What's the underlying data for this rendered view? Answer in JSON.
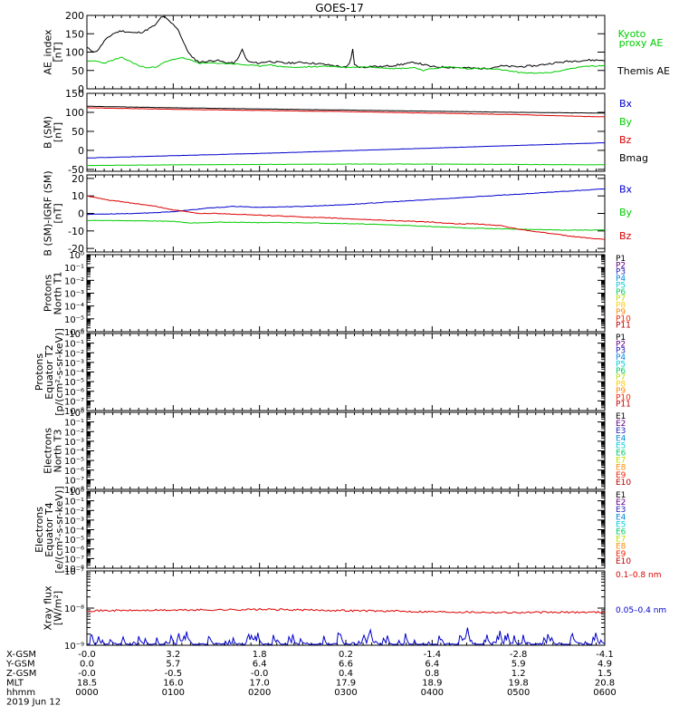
{
  "title": "GOES-17",
  "chart_data": [
    {
      "type": "line",
      "panel": "ae",
      "ylabel": [
        "AE_index",
        "[nT]"
      ],
      "ylim": [
        0,
        200
      ],
      "yticks": [
        {
          "v": 200,
          "label": "200"
        },
        {
          "v": 150,
          "label": "150"
        },
        {
          "v": 100,
          "label": "100"
        },
        {
          "v": 50,
          "label": "50"
        },
        {
          "v": 0,
          "label": "0"
        }
      ],
      "legend_labels": [
        {
          "text": "Kyoto",
          "color": "#00cc00"
        },
        {
          "text": "proxy AE",
          "color": "#00cc00"
        },
        {
          "text": "Themis AE",
          "color": "#000000"
        }
      ],
      "series": [
        {
          "name": "Themis AE",
          "color": "#000000",
          "noise": 2.5,
          "seed": 11,
          "x": [
            0,
            5,
            10,
            15,
            20,
            25,
            30,
            40,
            55,
            65,
            75,
            80,
            85,
            87,
            90,
            95,
            100,
            105,
            115,
            122,
            130,
            140,
            150,
            160,
            170,
            175,
            178,
            180,
            182,
            185,
            190,
            200,
            210,
            230,
            250,
            270,
            290,
            300,
            305,
            308,
            310,
            315,
            320,
            330,
            340,
            360,
            380,
            400,
            430,
            460,
            480,
            500,
            520,
            540,
            560,
            580,
            600
          ],
          "y": [
            112,
            105,
            100,
            112,
            130,
            140,
            150,
            158,
            152,
            155,
            168,
            175,
            192,
            198,
            195,
            185,
            175,
            165,
            110,
            85,
            73,
            75,
            78,
            72,
            70,
            80,
            100,
            106,
            95,
            78,
            72,
            70,
            75,
            70,
            72,
            68,
            62,
            58,
            70,
            110,
            65,
            60,
            58,
            62,
            60,
            65,
            72,
            60,
            58,
            55,
            62,
            60,
            63,
            70,
            75,
            78,
            78
          ]
        },
        {
          "name": "Kyoto proxy AE",
          "color": "#00cc00",
          "noise": 1.5,
          "seed": 23,
          "x": [
            0,
            10,
            20,
            30,
            40,
            50,
            60,
            70,
            80,
            90,
            100,
            110,
            120,
            130,
            150,
            170,
            190,
            200,
            210,
            220,
            240,
            260,
            280,
            300,
            320,
            340,
            360,
            380,
            390,
            400,
            420,
            440,
            460,
            480,
            500,
            520,
            540,
            560,
            580,
            600
          ],
          "y": [
            74,
            76,
            70,
            78,
            85,
            75,
            63,
            57,
            60,
            72,
            80,
            85,
            78,
            70,
            70,
            68,
            64,
            62,
            66,
            62,
            58,
            60,
            62,
            58,
            60,
            58,
            55,
            58,
            50,
            55,
            60,
            55,
            55,
            52,
            45,
            42,
            45,
            55,
            62,
            62
          ]
        }
      ]
    },
    {
      "type": "line",
      "panel": "b_sm",
      "ylabel": [
        "B (SM)",
        "[nT]"
      ],
      "ylim": [
        -55,
        150
      ],
      "yticks": [
        {
          "v": 150,
          "label": "150"
        },
        {
          "v": 100,
          "label": "100"
        },
        {
          "v": 50,
          "label": "50"
        },
        {
          "v": 0,
          "label": "0"
        },
        {
          "v": -50,
          "label": "-50"
        }
      ],
      "legend_labels": [
        {
          "text": "Bx",
          "color": "#0000cc"
        },
        {
          "text": "By",
          "color": "#00cc00"
        },
        {
          "text": "Bz",
          "color": "#dd0000"
        },
        {
          "text": "Bmag",
          "color": "#000000"
        }
      ],
      "series": [
        {
          "name": "Bx",
          "color": "#0000cc",
          "noise": 0.3,
          "seed": 31,
          "x": [
            0,
            100,
            200,
            300,
            400,
            500,
            600
          ],
          "y": [
            -20,
            -14,
            -8,
            -1,
            6,
            13,
            20
          ]
        },
        {
          "name": "By",
          "color": "#00cc00",
          "noise": 0.4,
          "seed": 37,
          "x": [
            0,
            100,
            200,
            300,
            400,
            500,
            600
          ],
          "y": [
            -40,
            -38,
            -37,
            -36,
            -36,
            -37,
            -38
          ]
        },
        {
          "name": "Bz",
          "color": "#dd0000",
          "noise": 0.5,
          "seed": 41,
          "x": [
            0,
            100,
            200,
            300,
            400,
            500,
            600
          ],
          "y": [
            112,
            108,
            105,
            102,
            98,
            94,
            88
          ]
        },
        {
          "name": "Bmag",
          "color": "#000000",
          "noise": 0.3,
          "seed": 43,
          "x": [
            0,
            100,
            200,
            300,
            400,
            500,
            600
          ],
          "y": [
            116,
            112,
            109,
            106,
            103,
            100,
            98
          ]
        }
      ]
    },
    {
      "type": "line",
      "panel": "b_sm_igrf",
      "ylabel": [
        "B (SM)-IGRF (SM)",
        "[nT]"
      ],
      "ylim": [
        -22,
        22
      ],
      "yticks": [
        {
          "v": 20,
          "label": "20"
        },
        {
          "v": 10,
          "label": "10"
        },
        {
          "v": 0,
          "label": "0"
        },
        {
          "v": -10,
          "label": "-10"
        },
        {
          "v": -20,
          "label": "-20"
        }
      ],
      "legend_labels": [
        {
          "text": "Bx",
          "color": "#0000cc"
        },
        {
          "text": "By",
          "color": "#00cc00"
        },
        {
          "text": "Bz",
          "color": "#dd0000"
        }
      ],
      "series": [
        {
          "name": "Bx",
          "color": "#0000cc",
          "noise": 0.15,
          "seed": 53,
          "x": [
            0,
            60,
            100,
            140,
            170,
            200,
            250,
            300,
            350,
            400,
            450,
            500,
            550,
            600
          ],
          "y": [
            -0.5,
            0,
            1,
            3,
            4,
            3.5,
            4,
            5,
            6.5,
            8,
            9.5,
            11,
            12.5,
            14
          ]
        },
        {
          "name": "By",
          "color": "#00cc00",
          "noise": 0.15,
          "seed": 59,
          "x": [
            0,
            60,
            100,
            120,
            150,
            200,
            250,
            300,
            350,
            400,
            450,
            500,
            550,
            600
          ],
          "y": [
            -4,
            -4.2,
            -4.5,
            -5.5,
            -5,
            -5.2,
            -5.3,
            -5.8,
            -6.5,
            -7.5,
            -8.5,
            -9,
            -9.5,
            -9.5
          ]
        },
        {
          "name": "Bz",
          "color": "#dd0000",
          "noise": 0.2,
          "seed": 61,
          "x": [
            0,
            20,
            50,
            80,
            100,
            130,
            150,
            200,
            250,
            300,
            350,
            400,
            430,
            450,
            480,
            500,
            530,
            560,
            600
          ],
          "y": [
            10,
            8,
            6,
            4,
            2,
            0,
            0,
            -1,
            -2,
            -3,
            -4,
            -5,
            -6,
            -6,
            -7,
            -9,
            -11,
            -13,
            -15
          ]
        }
      ]
    },
    {
      "type": "line",
      "panel": "protons_t1",
      "ylabel": [
        "Protons",
        "North T1"
      ],
      "log": true,
      "ylim": [
        1e-06,
        1
      ],
      "ytick_labels": [
        "10⁰",
        "10⁻¹",
        "10⁻²",
        "10⁻³",
        "10⁻⁴",
        "10⁻⁵",
        "10⁻⁶"
      ],
      "legend_labels": [
        {
          "text": "P1",
          "color": "#000000"
        },
        {
          "text": "P2",
          "color": "#660088"
        },
        {
          "text": "P3",
          "color": "#2222bb"
        },
        {
          "text": "P4",
          "color": "#0088dd"
        },
        {
          "text": "P5",
          "color": "#00ccdd"
        },
        {
          "text": "P6",
          "color": "#00cc66"
        },
        {
          "text": "P7",
          "color": "#bbdd00"
        },
        {
          "text": "P8",
          "color": "#ffcc00"
        },
        {
          "text": "P9",
          "color": "#ff8800"
        },
        {
          "text": "P10",
          "color": "#ee2200"
        },
        {
          "text": "P11",
          "color": "#bb0000"
        }
      ],
      "series": []
    },
    {
      "type": "line",
      "panel": "protons_t2",
      "ylabel": [
        "Protons",
        "Equator T2",
        "[p/(cm²-s-sr-keV)]"
      ],
      "log": true,
      "ylim": [
        1e-08,
        1
      ],
      "ytick_labels": [
        "10⁰",
        "10⁻¹",
        "10⁻²",
        "10⁻³",
        "10⁻⁴",
        "10⁻⁵",
        "10⁻⁶",
        "10⁻⁷",
        "10⁻⁸"
      ],
      "legend_labels": [
        {
          "text": "P1",
          "color": "#000000"
        },
        {
          "text": "P2",
          "color": "#660088"
        },
        {
          "text": "P3",
          "color": "#2222bb"
        },
        {
          "text": "P4",
          "color": "#0088dd"
        },
        {
          "text": "P5",
          "color": "#00ccdd"
        },
        {
          "text": "P6",
          "color": "#00cc66"
        },
        {
          "text": "P7",
          "color": "#bbdd00"
        },
        {
          "text": "P8",
          "color": "#ffcc00"
        },
        {
          "text": "P9",
          "color": "#ff8800"
        },
        {
          "text": "P10",
          "color": "#ee2200"
        },
        {
          "text": "P11",
          "color": "#bb0000"
        }
      ],
      "series": []
    },
    {
      "type": "line",
      "panel": "electrons_t3",
      "ylabel": [
        "Electrons",
        "North T3"
      ],
      "log": true,
      "ylim": [
        1e-08,
        1
      ],
      "ytick_labels": [
        "10⁰",
        "10⁻¹",
        "10⁻²",
        "10⁻³",
        "10⁻⁴",
        "10⁻⁵",
        "10⁻⁶",
        "10⁻⁷",
        "10⁻⁸"
      ],
      "legend_labels": [
        {
          "text": "E1",
          "color": "#000000"
        },
        {
          "text": "E2",
          "color": "#660088"
        },
        {
          "text": "E3",
          "color": "#2222bb"
        },
        {
          "text": "E4",
          "color": "#0088dd"
        },
        {
          "text": "E5",
          "color": "#00ccdd"
        },
        {
          "text": "E6",
          "color": "#00cc66"
        },
        {
          "text": "E7",
          "color": "#bbdd00"
        },
        {
          "text": "E8",
          "color": "#ff8800"
        },
        {
          "text": "E9",
          "color": "#ee2200"
        },
        {
          "text": "E10",
          "color": "#bb0000"
        }
      ],
      "series": []
    },
    {
      "type": "line",
      "panel": "electrons_t4",
      "ylabel": [
        "Electrons",
        "Equator T4",
        "[e/(cm²-s-sr-keV)]"
      ],
      "log": true,
      "ylim": [
        1e-08,
        1
      ],
      "ytick_labels": [
        "10⁰",
        "10⁻¹",
        "10⁻²",
        "10⁻³",
        "10⁻⁴",
        "10⁻⁵",
        "10⁻⁶",
        "10⁻⁷",
        "10⁻⁸"
      ],
      "legend_labels": [
        {
          "text": "E1",
          "color": "#000000"
        },
        {
          "text": "E2",
          "color": "#660088"
        },
        {
          "text": "E3",
          "color": "#2222bb"
        },
        {
          "text": "E4",
          "color": "#0088dd"
        },
        {
          "text": "E5",
          "color": "#00ccdd"
        },
        {
          "text": "E6",
          "color": "#00cc66"
        },
        {
          "text": "E7",
          "color": "#bbdd00"
        },
        {
          "text": "E8",
          "color": "#ff8800"
        },
        {
          "text": "E9",
          "color": "#ee2200"
        },
        {
          "text": "E10",
          "color": "#bb0000"
        }
      ],
      "series": []
    },
    {
      "type": "line",
      "panel": "xray",
      "ylabel": [
        "Xray flux",
        "[W/m²]"
      ],
      "log": true,
      "ylim": [
        1e-09,
        1e-07
      ],
      "ytick_labels": [
        "10⁻⁷",
        "10⁻⁸",
        "10⁻⁹"
      ],
      "legend_labels": [
        {
          "text": "0.1–0.8 nm",
          "color": "#dd0000"
        },
        {
          "text": "0.05–0.4 nm",
          "color": "#0000cc"
        }
      ],
      "series": [
        {
          "name": "0.1–0.8 nm",
          "color": "#dd0000",
          "noise_log": 0.025,
          "seed": 71,
          "x": [
            0,
            100,
            200,
            300,
            400,
            500,
            600
          ],
          "y": [
            8.5e-09,
            8.8e-09,
            9.2e-09,
            8.6e-09,
            8e-09,
            7.6e-09,
            7.8e-09
          ]
        },
        {
          "name": "0.05–0.4 nm",
          "color": "#0000cc",
          "spiky": true,
          "seed": 79,
          "x": [
            0,
            600
          ],
          "y": [
            1e-09,
            1e-09
          ]
        }
      ]
    }
  ],
  "x_axis": {
    "tick_hours": [
      0,
      100,
      200,
      300,
      400,
      500,
      600
    ],
    "rows": [
      {
        "label": "X-GSM",
        "values": [
          "-0.0",
          "3.2",
          "1.8",
          "0.2",
          "-1.4",
          "-2.8",
          "-4.1"
        ]
      },
      {
        "label": "Y-GSM",
        "values": [
          "0.0",
          "5.7",
          "6.4",
          "6.6",
          "6.4",
          "5.9",
          "4.9"
        ]
      },
      {
        "label": "Z-GSM",
        "values": [
          "-0.0",
          "-0.5",
          "-0.0",
          "0.4",
          "0.8",
          "1.2",
          "1.5"
        ]
      },
      {
        "label": "MLT",
        "values": [
          "18.5",
          "16.0",
          "17.0",
          "17.9",
          "18.9",
          "19.8",
          "20.8"
        ]
      },
      {
        "label": "hhmm",
        "values": [
          "0000",
          "0100",
          "0200",
          "0300",
          "0400",
          "0500",
          "0600"
        ]
      }
    ],
    "date": "2019 Jun 12"
  }
}
